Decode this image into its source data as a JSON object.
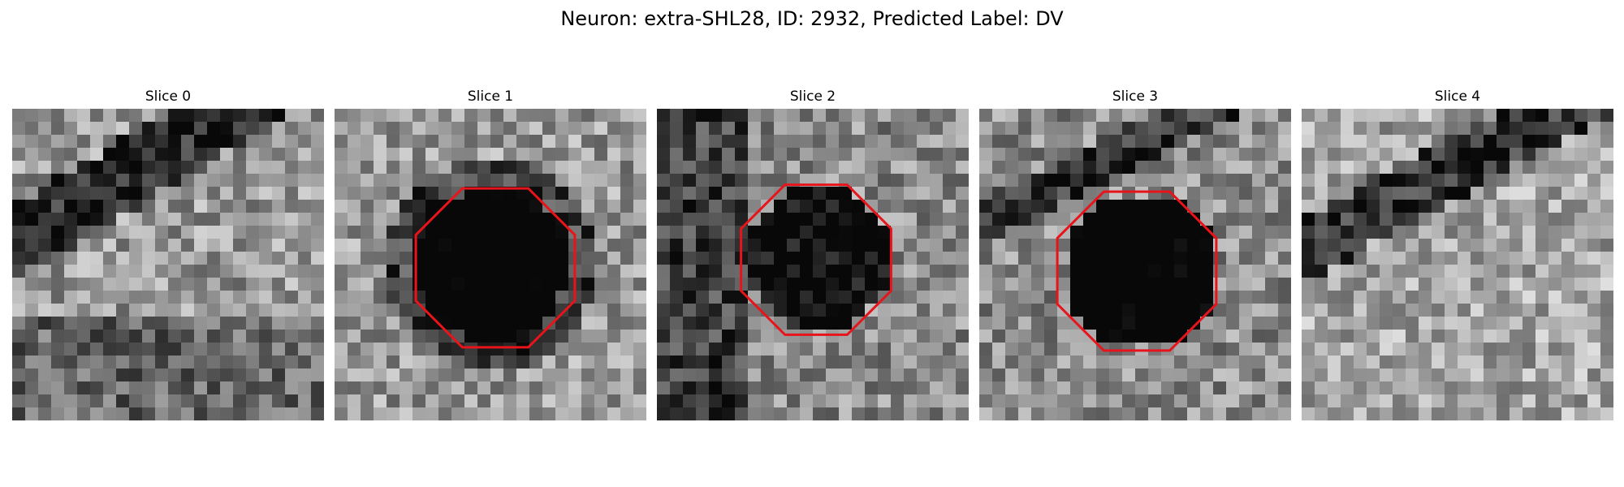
{
  "figure": {
    "title": "Neuron: extra-SHL28, ID: 2932, Predicted Label: DV"
  },
  "panels": [
    {
      "title": "Slice 0",
      "outline": false,
      "seed": 11
    },
    {
      "title": "Slice 1",
      "outline": true,
      "seed": 23
    },
    {
      "title": "Slice 2",
      "outline": true,
      "seed": 37
    },
    {
      "title": "Slice 3",
      "outline": true,
      "seed": 41
    },
    {
      "title": "Slice 4",
      "outline": false,
      "seed": 59
    }
  ],
  "colors": {
    "outline": "#e8141b",
    "background": "#ffffff"
  }
}
